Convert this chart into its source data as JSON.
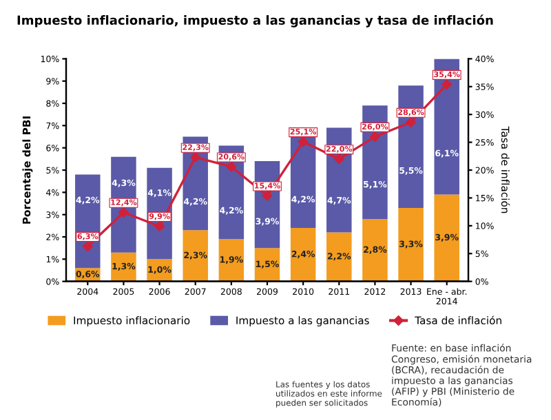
{
  "chart_data": {
    "type": "bar",
    "title": "Impuesto inflacionario, impuesto a las ganancias y tasa de inflación",
    "categories": [
      "2004",
      "2005",
      "2006",
      "2007",
      "2008",
      "2009",
      "2010",
      "2011",
      "2012",
      "2013",
      "Ene - abr.\n2014"
    ],
    "stacked": true,
    "series": [
      {
        "name": "Impuesto inflacionario",
        "color": "#f39c1f",
        "values": [
          0.6,
          1.3,
          1.0,
          2.3,
          1.9,
          1.5,
          2.4,
          2.2,
          2.8,
          3.3,
          3.9
        ],
        "value_labels": [
          "0,6%",
          "1,3%",
          "1,0%",
          "2,3%",
          "1,9%",
          "1,5%",
          "2,4%",
          "2,2%",
          "2,8%",
          "3,3%",
          "3,9%"
        ]
      },
      {
        "name": "Impuesto a las ganancias",
        "color": "#5a5aa8",
        "values": [
          4.2,
          4.3,
          4.1,
          4.2,
          4.2,
          3.9,
          4.2,
          4.7,
          5.1,
          5.5,
          6.1
        ],
        "value_labels": [
          "4,2%",
          "4,3%",
          "4,1%",
          "4,2%",
          "4,2%",
          "3,9%",
          "4,2%",
          "4,7%",
          "5,1%",
          "5,5%",
          "6,1%"
        ]
      },
      {
        "name": "Tasa de inflación",
        "type": "line",
        "axis": "y2",
        "color": "#d0213a",
        "marker": "diamond",
        "values": [
          6.3,
          12.4,
          9.9,
          22.3,
          20.6,
          15.4,
          25.1,
          22.0,
          26.0,
          28.6,
          35.4
        ],
        "value_labels": [
          "6,3%",
          "12,4%",
          "9,9%",
          "22,3%",
          "20,6%",
          "15,4%",
          "25,1%",
          "22,0%",
          "26,0%",
          "28,6%",
          "35,4%"
        ]
      }
    ],
    "ylabel": "Porcentaje del PBI",
    "y2label": "Tasa de inflación",
    "ylim": [
      0,
      10
    ],
    "yticks": [
      {
        "value": 0,
        "label": "0%"
      },
      {
        "value": 1,
        "label": "1%"
      },
      {
        "value": 2,
        "label": "2%"
      },
      {
        "value": 3,
        "label": "3%"
      },
      {
        "value": 4,
        "label": "4%"
      },
      {
        "value": 5,
        "label": "5%"
      },
      {
        "value": 6,
        "label": "6%"
      },
      {
        "value": 7,
        "label": "7%"
      },
      {
        "value": 8,
        "label": "8%"
      },
      {
        "value": 9,
        "label": "9%"
      },
      {
        "value": 10,
        "label": "10%"
      }
    ],
    "y2lim": [
      0,
      40
    ],
    "y2ticks": [
      {
        "value": 0,
        "label": "0%"
      },
      {
        "value": 5,
        "label": "5%"
      },
      {
        "value": 10,
        "label": "10%"
      },
      {
        "value": 15,
        "label": "15%"
      },
      {
        "value": 20,
        "label": "20%"
      },
      {
        "value": 25,
        "label": "25%"
      },
      {
        "value": 30,
        "label": "30%"
      },
      {
        "value": 35,
        "label": "35%"
      },
      {
        "value": 40,
        "label": "40%"
      }
    ],
    "grid": false,
    "legend": "bottom",
    "annotations": [
      "Las fuentes y los datos utilizados en este informe pueden ser solicitados",
      "Fuente: en base inflación Congreso, emisión monetaria (BCRA), recaudación de impuesto a las ganancias (AFIP) y PBI (Ministerio de Economía)"
    ]
  }
}
